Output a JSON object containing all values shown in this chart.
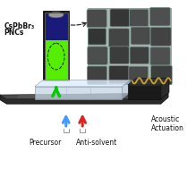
{
  "background_color": "#ffffff",
  "label_cspbbr3": "CsPbBr₃",
  "label_pncs": "PNCs",
  "label_precursor": "Precursor",
  "label_anti_solvent": "Anti-solvent",
  "label_acoustic": "Acoustic\nActuation",
  "arrow_green_color": "#00cc00",
  "arrow_blue_color": "#4499ff",
  "arrow_red_color": "#dd2222",
  "wire_color": "#c8a030",
  "figsize": [
    2.09,
    1.89
  ],
  "dpi": 100,
  "sem_bg": "#a8b8b0",
  "sem_block_dark": "#363e3a",
  "sem_block_light": "#8a9e96",
  "vial_black": "#0a0a0a",
  "vial_blue": "#1a1a7a",
  "vial_green": "#55ee00",
  "vial_cap": "#aaaaaa",
  "platform_dark": "#222222",
  "platform_mid": "#555555",
  "platform_light": "#999999",
  "chip_face": "#c5d5e5",
  "chip_top": "#ddeeff",
  "chip_edge": "#8899aa",
  "transducer": "#1a1a1a",
  "trans_top": "#333333"
}
